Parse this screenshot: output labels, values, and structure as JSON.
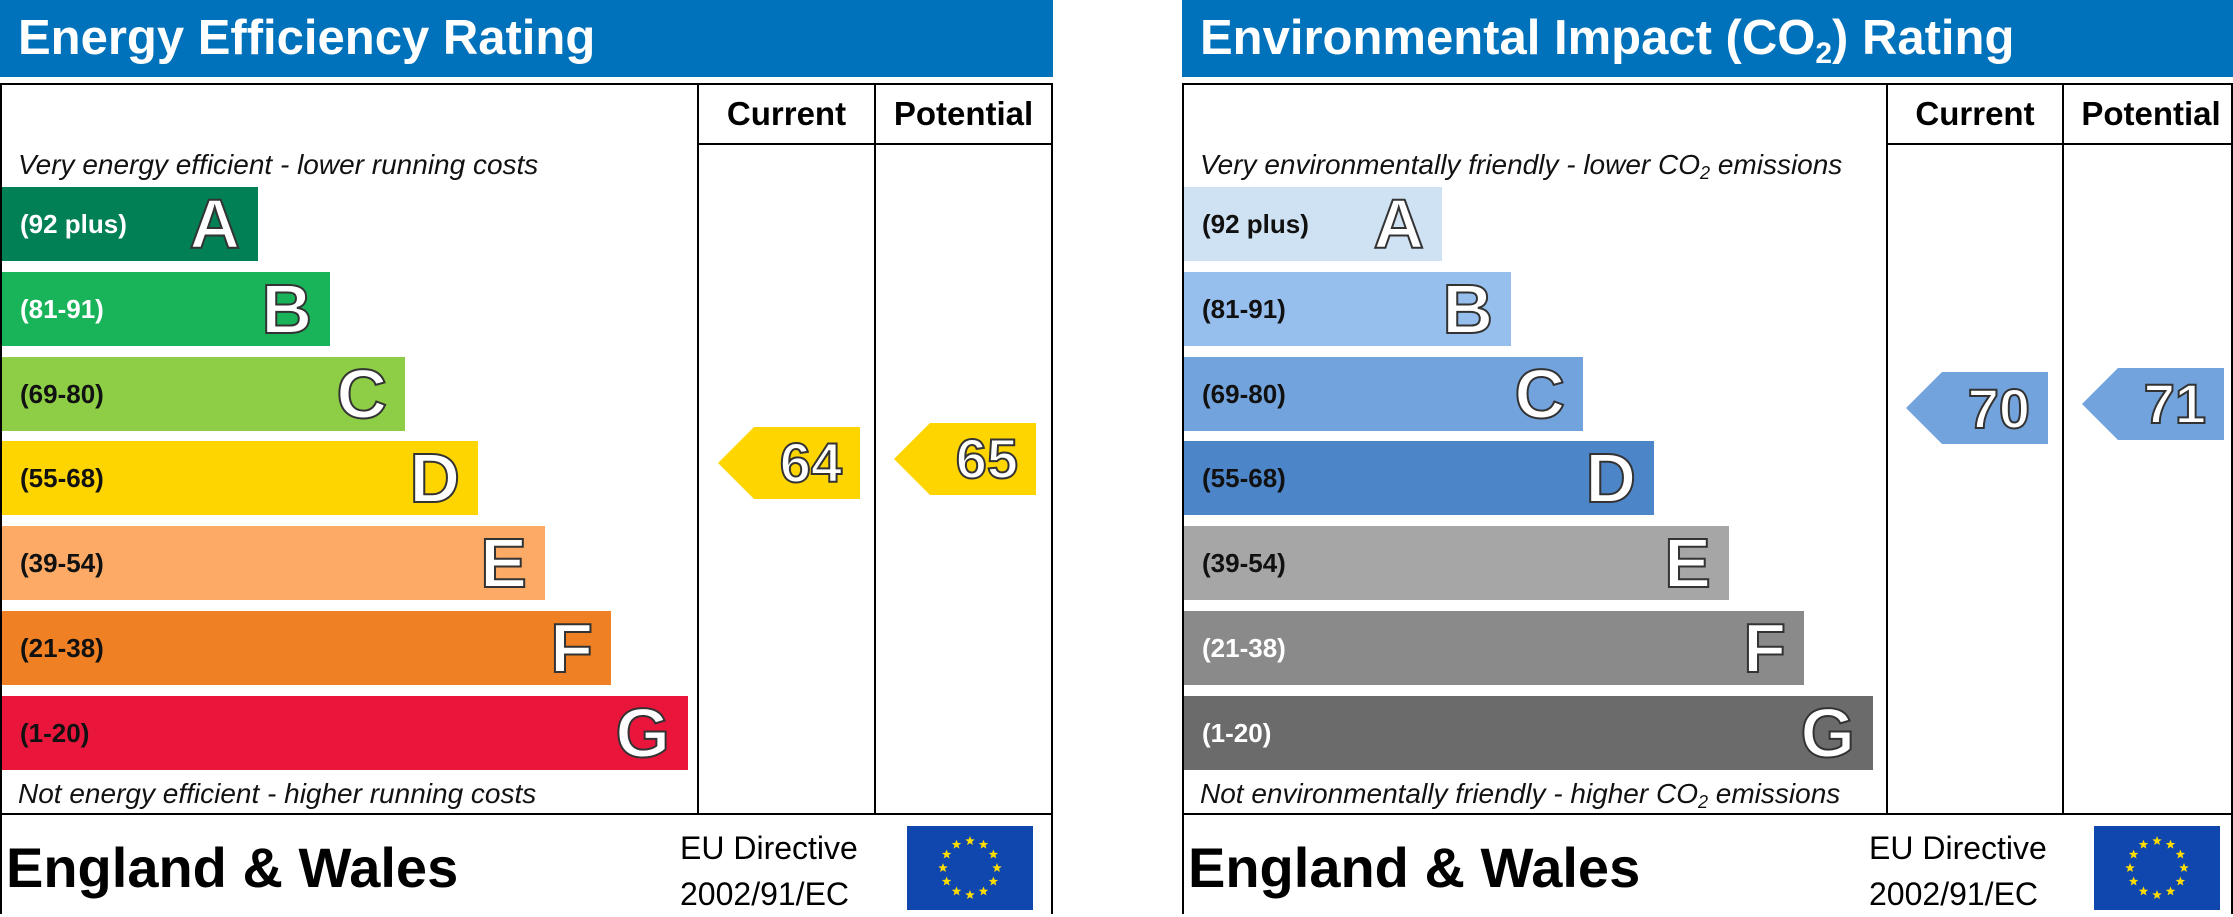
{
  "chart_data": [
    {
      "type": "bar",
      "title": "Energy Efficiency Rating",
      "columns": [
        "Current",
        "Potential"
      ],
      "top_note": "Very energy efficient - lower running costs",
      "bottom_note": "Not energy efficient - higher running costs",
      "bands": [
        {
          "letter": "A",
          "range": "(92 plus)",
          "color": "#008054",
          "text_color": "#ffffff"
        },
        {
          "letter": "B",
          "range": "(81-91)",
          "color": "#19b459",
          "text_color": "#ffffff"
        },
        {
          "letter": "C",
          "range": "(69-80)",
          "color": "#8dce46",
          "text_color": "#111111"
        },
        {
          "letter": "D",
          "range": "(55-68)",
          "color": "#ffd500",
          "text_color": "#111111"
        },
        {
          "letter": "E",
          "range": "(39-54)",
          "color": "#fcaa65",
          "text_color": "#111111"
        },
        {
          "letter": "F",
          "range": "(21-38)",
          "color": "#ef8023",
          "text_color": "#111111"
        },
        {
          "letter": "G",
          "range": "(1-20)",
          "color": "#e9153b",
          "text_color": "#111111"
        }
      ],
      "current": {
        "value": 64,
        "color": "#ffd500"
      },
      "potential": {
        "value": 65,
        "color": "#ffd500"
      },
      "footer": {
        "region": "England & Wales",
        "directive_line1": "EU Directive",
        "directive_line2": "2002/91/EC"
      }
    },
    {
      "type": "bar",
      "title_pre": "Environmental Impact (CO",
      "title_sub": "2",
      "title_post": ") Rating",
      "columns": [
        "Current",
        "Potential"
      ],
      "top_note_pre": "Very environmentally friendly - lower CO",
      "top_note_sub": "2",
      "top_note_post": " emissions",
      "bottom_note_pre": "Not environmentally friendly - higher CO",
      "bottom_note_sub": "2",
      "bottom_note_post": " emissions",
      "bands": [
        {
          "letter": "A",
          "range": "(92 plus)",
          "color": "#cfe2f3",
          "text_color": "#111111"
        },
        {
          "letter": "B",
          "range": "(81-91)",
          "color": "#97bfee",
          "text_color": "#111111"
        },
        {
          "letter": "C",
          "range": "(69-80)",
          "color": "#73a3dd",
          "text_color": "#111111"
        },
        {
          "letter": "D",
          "range": "(55-68)",
          "color": "#4d85c9",
          "text_color": "#111111"
        },
        {
          "letter": "E",
          "range": "(39-54)",
          "color": "#a6a6a6",
          "text_color": "#111111"
        },
        {
          "letter": "F",
          "range": "(21-38)",
          "color": "#8a8a8a",
          "text_color": "#ffffff"
        },
        {
          "letter": "G",
          "range": "(1-20)",
          "color": "#6b6b6b",
          "text_color": "#ffffff"
        }
      ],
      "current": {
        "value": 70,
        "color": "#73a3dd"
      },
      "potential": {
        "value": 71,
        "color": "#73a3dd"
      },
      "footer": {
        "region": "England & Wales",
        "directive_line1": "EU Directive",
        "directive_line2": "2002/91/EC"
      }
    }
  ]
}
